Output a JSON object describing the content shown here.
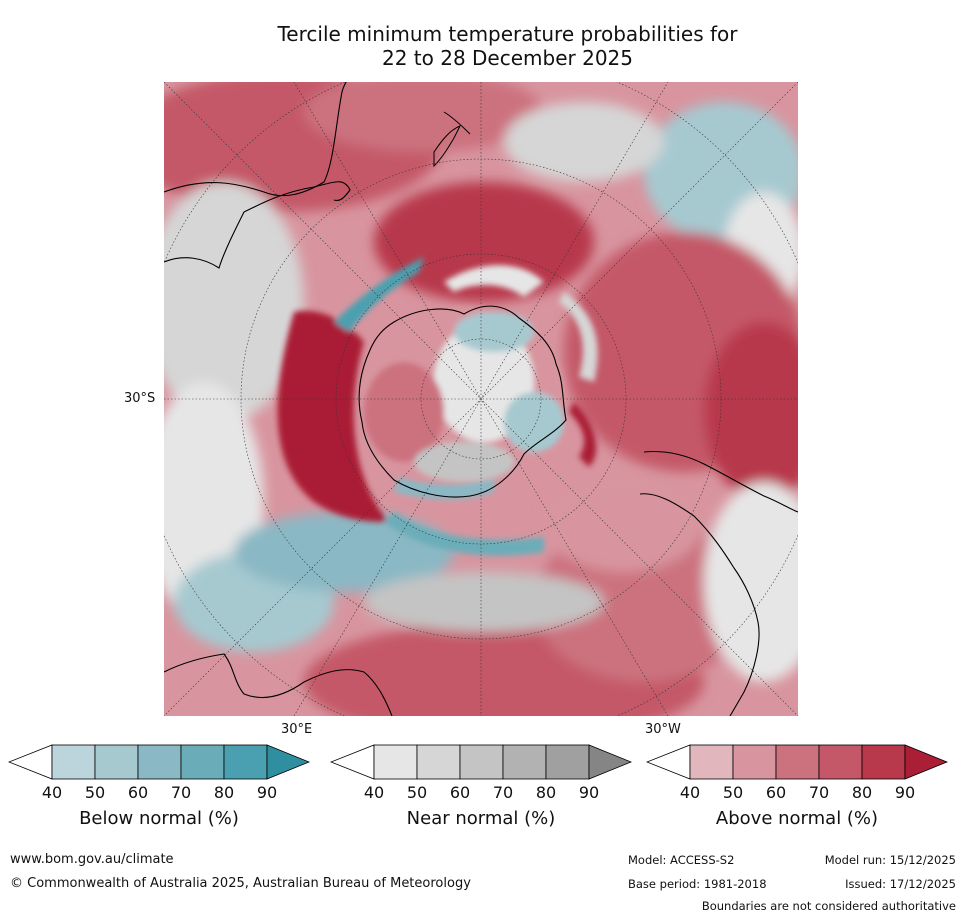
{
  "title_line1": "Tercile minimum temperature probabilities for",
  "title_line2": "22 to 28 December 2025",
  "map": {
    "projection": "south polar stereographic",
    "latitude_label": "30°S",
    "longitude_labels": [
      "30°E",
      "30°W"
    ],
    "colors": {
      "below": [
        "#bcd5dc",
        "#a6c9d0",
        "#8ab8c4",
        "#6aadb9",
        "#4aa0b0",
        "#2f8fa0"
      ],
      "near": [
        "#e6e6e6",
        "#d6d6d6",
        "#c4c4c4",
        "#b2b2b2",
        "#a0a0a0",
        "#858585"
      ],
      "above": [
        "#e2b6bd",
        "#d8959f",
        "#cc727f",
        "#c45868",
        "#b8384c",
        "#aa1f35"
      ],
      "coastline": "#000000"
    }
  },
  "legends": [
    {
      "label": "Below normal (%)",
      "ticks": [
        "40",
        "50",
        "60",
        "70",
        "80",
        "90"
      ]
    },
    {
      "label": "Near normal (%)",
      "ticks": [
        "40",
        "50",
        "60",
        "70",
        "80",
        "90"
      ]
    },
    {
      "label": "Above normal (%)",
      "ticks": [
        "40",
        "50",
        "60",
        "70",
        "80",
        "90"
      ]
    }
  ],
  "footer": {
    "website": "www.bom.gov.au/climate",
    "copyright": "© Commonwealth of Australia 2025, Australian Bureau of Meteorology",
    "model": "Model: ACCESS-S2",
    "base_period": "Base period: 1981-2018",
    "model_run": "Model run: 15/12/2025",
    "issued": "Issued: 17/12/2025",
    "boundaries": "Boundaries are not considered authoritative"
  }
}
